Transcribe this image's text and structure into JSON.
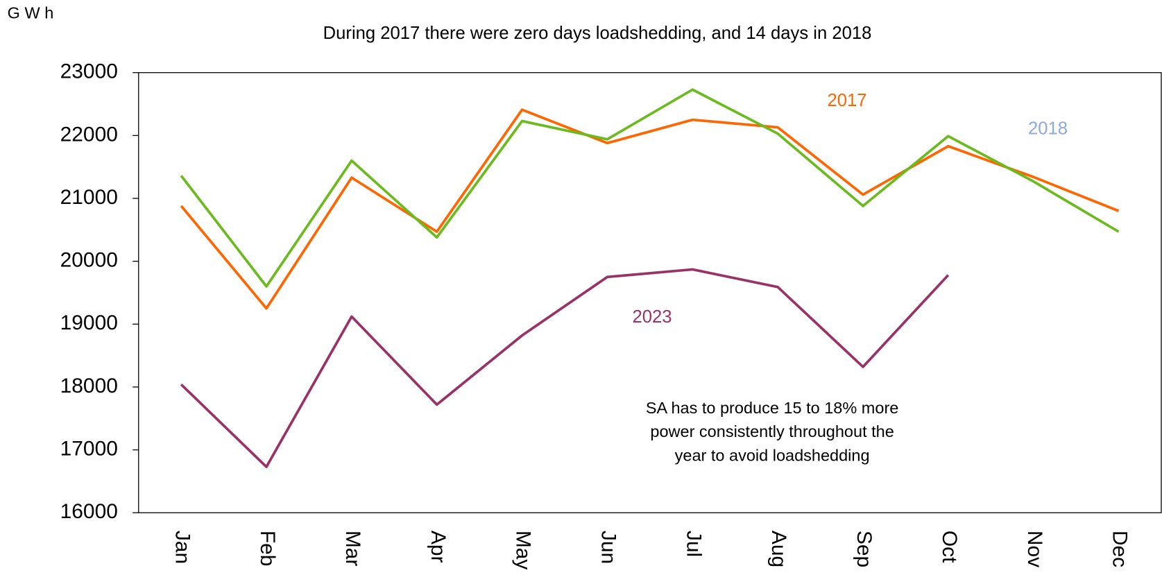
{
  "chart_data": {
    "type": "line",
    "unit_label": "G W h",
    "title": "During 2017 there were zero days loadshedding, and 14 days in 2018",
    "categories": [
      "Jan",
      "Feb",
      "Mar",
      "Apr",
      "May",
      "Jun",
      "Jul",
      "Aug",
      "Sep",
      "Oct",
      "Nov",
      "Dec"
    ],
    "series": [
      {
        "name": "2017",
        "color": "#ff6600",
        "label_color": "#ff6600",
        "values": [
          20880,
          19250,
          21330,
          20470,
          22410,
          21880,
          22250,
          22130,
          21060,
          21830,
          21340,
          20800
        ]
      },
      {
        "name": "2018",
        "color": "#6cbb1e",
        "label_color": "#8eaadb",
        "values": [
          21360,
          19600,
          21600,
          20380,
          22230,
          21940,
          22730,
          22030,
          20880,
          21990,
          21270,
          20470
        ]
      },
      {
        "name": "2023",
        "color": "#993366",
        "label_color": "#993366",
        "values": [
          18040,
          16730,
          19120,
          17720,
          18820,
          19750,
          19870,
          19590,
          18320,
          19780,
          null,
          null
        ]
      }
    ],
    "annotation": [
      "SA has to produce 15 to 18% more",
      "power consistently throughout the",
      "year to avoid loadshedding"
    ],
    "ylim": [
      16000,
      23000
    ],
    "yticks": [
      16000,
      17000,
      18000,
      19000,
      20000,
      21000,
      22000,
      23000
    ],
    "grid": false
  }
}
